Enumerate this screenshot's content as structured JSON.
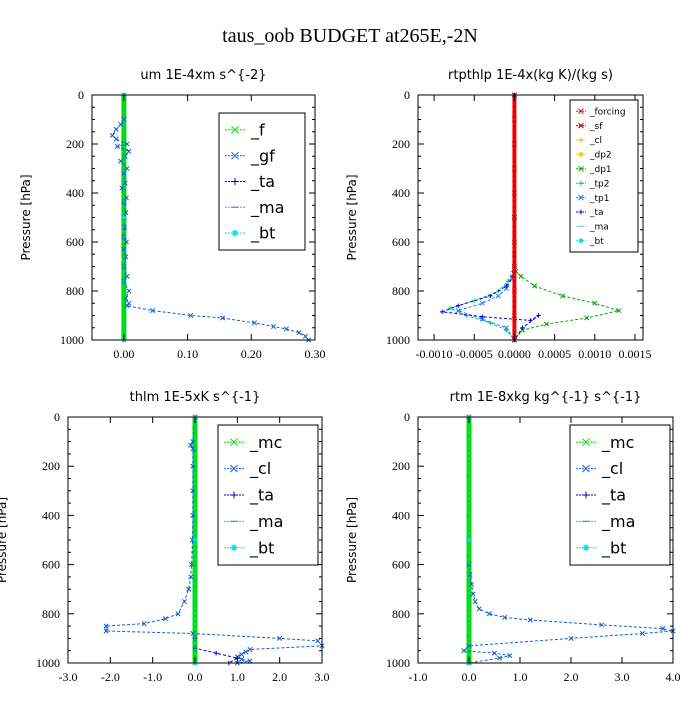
{
  "figure": {
    "title": "taus_oob  BUDGET at265E,-2N"
  },
  "colors": {
    "f": "#00dd00",
    "gf": "#1060d0",
    "ta": "#0000cc",
    "ma": "#40a0ff",
    "bt": "#00e0e0",
    "mc": "#00dd00",
    "cl": "#1060d0",
    "forcing": "#ff0000",
    "sf": "#c00000",
    "cl_rt": "#ffa000",
    "dp2": "#ffcc00",
    "dp1": "#00aa00",
    "tp2": "#00cc66",
    "tp1": "#2080ff",
    "ta_rt": "#0000ff",
    "ma_rt": "#80c0ff",
    "bt_rt": "#00e0e0"
  },
  "chart_data": [
    {
      "type": "line",
      "title": "um  1E-4xm s^{-2}",
      "ylabel": "Pressure [hPa]",
      "xlim": [
        -0.05,
        0.3
      ],
      "ylim": [
        1000,
        0
      ],
      "xticks": [
        "0.00",
        "0.10",
        "0.20",
        "0.30"
      ],
      "xtick_values": [
        0.0,
        0.1,
        0.2,
        0.3
      ],
      "yticks": [
        "0",
        "200",
        "400",
        "600",
        "800",
        "1000"
      ],
      "ytick_values": [
        0,
        200,
        400,
        600,
        800,
        1000
      ],
      "legend": {
        "position": "top-right",
        "font_size": 16,
        "entries": [
          {
            "label": "_f",
            "color": "#00dd00",
            "marker": "x"
          },
          {
            "label": "_gf",
            "color": "#1060d0",
            "marker": "x"
          },
          {
            "label": "_ta",
            "color": "#0000cc",
            "marker": "+"
          },
          {
            "label": "_ma",
            "color": "#40a0ff",
            "marker": "-"
          },
          {
            "label": "_bt",
            "color": "#00e0e0",
            "marker": "*"
          }
        ]
      },
      "series": [
        {
          "name": "_f",
          "color": "#00dd00",
          "width": 5,
          "x": [
            0,
            0,
            0,
            0,
            0,
            0,
            0,
            0,
            0,
            0,
            0
          ],
          "y": [
            0,
            100,
            200,
            300,
            400,
            500,
            600,
            700,
            800,
            900,
            1000
          ]
        },
        {
          "name": "_gf",
          "color": "#1060d0",
          "width": 1,
          "x": [
            0.0,
            0.0,
            -0.005,
            -0.012,
            -0.018,
            -0.012,
            0.005,
            -0.01,
            0.008,
            0.002,
            -0.005,
            0.005,
            0.0,
            0.002,
            -0.003,
            0.004,
            0.0,
            0.003,
            0.0,
            0.001,
            0.0,
            0.004,
            0.0,
            0.003,
            0.0,
            0.005,
            0.0,
            0.008,
            0.003,
            0.008,
            0.005,
            0.045,
            0.105,
            0.155,
            0.205,
            0.235,
            0.255,
            0.275,
            0.285,
            0.29
          ],
          "y": [
            0,
            100,
            120,
            140,
            165,
            180,
            200,
            210,
            230,
            250,
            270,
            300,
            320,
            360,
            380,
            420,
            440,
            480,
            500,
            540,
            580,
            600,
            630,
            660,
            700,
            740,
            760,
            800,
            830,
            850,
            860,
            880,
            900,
            910,
            930,
            945,
            955,
            970,
            985,
            1000
          ]
        },
        {
          "name": "_ta",
          "color": "#0000cc",
          "width": 1,
          "x": [
            0.0,
            0.0,
            0.0
          ],
          "y": [
            0,
            500,
            1000
          ]
        },
        {
          "name": "_bt",
          "color": "#00e0e0",
          "width": 1,
          "x": [
            0.0,
            0.0,
            0.0
          ],
          "y": [
            0,
            500,
            1000
          ]
        }
      ]
    },
    {
      "type": "line",
      "title": "rtpthlp  1E-4x(kg K)/(kg s)",
      "ylabel": "Pressure [hPa]",
      "xlim": [
        -0.0012,
        0.0016
      ],
      "ylim": [
        1000,
        0
      ],
      "xticks": [
        "-0.0010",
        "-0.0005",
        "0.0000",
        "0.0005",
        "0.0010",
        "0.0015"
      ],
      "xtick_values": [
        -0.001,
        -0.0005,
        0.0,
        0.0005,
        0.001,
        0.0015
      ],
      "yticks": [
        "0",
        "200",
        "400",
        "600",
        "800",
        "1000"
      ],
      "ytick_values": [
        0,
        200,
        400,
        600,
        800,
        1000
      ],
      "legend": {
        "position": "top-right",
        "font_size": 9,
        "entries": [
          {
            "label": "_forcing",
            "color": "#ff0000",
            "marker": "x"
          },
          {
            "label": "_sf",
            "color": "#c00000",
            "marker": "x"
          },
          {
            "label": "_cl",
            "color": "#ffa000",
            "marker": "+"
          },
          {
            "label": "_dp2",
            "color": "#ffcc00",
            "marker": "*"
          },
          {
            "label": "_dp1",
            "color": "#00aa00",
            "marker": "x"
          },
          {
            "label": "_tp2",
            "color": "#00cc66",
            "marker": "+"
          },
          {
            "label": "_tp1",
            "color": "#2080ff",
            "marker": "x"
          },
          {
            "label": "_ta",
            "color": "#0000ff",
            "marker": "+"
          },
          {
            "label": "_ma",
            "color": "#80c0ff",
            "marker": "-"
          },
          {
            "label": "_bt",
            "color": "#00e0e0",
            "marker": "*"
          }
        ]
      },
      "series": [
        {
          "name": "_dp1",
          "color": "#00aa00",
          "width": 1,
          "x": [
            0,
            0,
            0,
            0,
            2e-05,
            8e-05,
            0.00025,
            0.0006,
            0.001,
            0.0013,
            0.0009,
            0.0004,
            0.0001,
            0
          ],
          "y": [
            0,
            500,
            650,
            700,
            720,
            740,
            780,
            820,
            850,
            880,
            910,
            935,
            960,
            1000
          ]
        },
        {
          "name": "_tp2",
          "color": "#00cc66",
          "width": 1,
          "x": [
            0,
            0,
            0,
            -2e-05,
            -8e-05,
            -0.0002,
            -0.0005,
            -0.0008,
            -0.0006,
            -0.0003,
            -0.0001,
            0
          ],
          "y": [
            0,
            500,
            700,
            720,
            760,
            800,
            840,
            870,
            900,
            930,
            960,
            1000
          ]
        },
        {
          "name": "_tp1",
          "color": "#2080ff",
          "width": 1,
          "x": [
            0,
            0,
            -3e-05,
            -0.0001,
            -0.0002,
            -0.0004,
            -0.0007,
            -0.0004,
            -0.0001,
            0
          ],
          "y": [
            0,
            600,
            750,
            790,
            820,
            850,
            880,
            915,
            950,
            1000
          ]
        },
        {
          "name": "_ta",
          "color": "#0000ff",
          "width": 1,
          "x": [
            0,
            0,
            -2e-05,
            -0.0001,
            -0.0003,
            -0.0007,
            -0.0009,
            -0.0004,
            0.0002,
            0.0003,
            0.0001,
            0
          ],
          "y": [
            0,
            700,
            740,
            780,
            820,
            860,
            885,
            905,
            920,
            900,
            950,
            1000
          ]
        },
        {
          "name": "_forcing",
          "color": "#ff0000",
          "width": 4,
          "x": [
            0,
            0,
            0,
            0,
            0,
            0,
            0,
            0,
            0,
            0,
            0
          ],
          "y": [
            0,
            100,
            200,
            300,
            400,
            500,
            600,
            700,
            800,
            900,
            1000
          ]
        },
        {
          "name": "_sf",
          "color": "#c00000",
          "width": 1,
          "x": [
            0,
            0,
            0
          ],
          "y": [
            0,
            500,
            1000
          ]
        }
      ]
    },
    {
      "type": "line",
      "title": "thlm  1E-5xK s^{-1}",
      "ylabel": "Pressure [hPa]",
      "xlim": [
        -3.0,
        3.0
      ],
      "ylim": [
        1000,
        0
      ],
      "xticks": [
        "-3.0",
        "-2.0",
        "-1.0",
        "0.0",
        "1.0",
        "2.0",
        "3.0"
      ],
      "xtick_values": [
        -3,
        -2,
        -1,
        0,
        1,
        2,
        3
      ],
      "yticks": [
        "0",
        "200",
        "400",
        "600",
        "800",
        "1000"
      ],
      "ytick_values": [
        0,
        200,
        400,
        600,
        800,
        1000
      ],
      "legend": {
        "position": "top-right",
        "font_size": 16,
        "entries": [
          {
            "label": "_mc",
            "color": "#00dd00",
            "marker": "x"
          },
          {
            "label": "_cl",
            "color": "#1060d0",
            "marker": "x"
          },
          {
            "label": "_ta",
            "color": "#0000cc",
            "marker": "+"
          },
          {
            "label": "_ma",
            "color": "#40a0ff",
            "marker": "-"
          },
          {
            "label": "_bt",
            "color": "#00e0e0",
            "marker": "*"
          }
        ]
      },
      "series": [
        {
          "name": "_mc",
          "color": "#00dd00",
          "width": 5,
          "x": [
            0,
            0,
            0,
            0,
            0,
            0,
            0,
            0,
            0,
            0,
            0
          ],
          "y": [
            0,
            100,
            200,
            300,
            400,
            500,
            600,
            700,
            800,
            900,
            1000
          ]
        },
        {
          "name": "_cl",
          "color": "#1060d0",
          "width": 1,
          "x": [
            0,
            -0.05,
            -0.1,
            -0.05,
            -0.05,
            -0.05,
            -0.05,
            -0.06,
            -0.08,
            -0.1,
            -0.15,
            -0.25,
            -0.4,
            -0.7,
            -1.2,
            -2.1,
            -2.1,
            -0.05,
            2.0,
            2.9,
            3.0,
            1.3,
            1.2,
            1.1,
            1.0,
            1.1,
            1.3,
            1.0
          ],
          "y": [
            0,
            100,
            115,
            130,
            200,
            300,
            400,
            500,
            600,
            650,
            700,
            750,
            800,
            820,
            840,
            850,
            870,
            880,
            900,
            910,
            930,
            945,
            955,
            965,
            975,
            985,
            992,
            1000
          ]
        },
        {
          "name": "_ta",
          "color": "#0000cc",
          "width": 1,
          "x": [
            0,
            0,
            0,
            0.5,
            1.0,
            0.8
          ],
          "y": [
            0,
            900,
            940,
            960,
            980,
            1000
          ]
        },
        {
          "name": "_bt",
          "color": "#00e0e0",
          "width": 1,
          "x": [
            0,
            0,
            0
          ],
          "y": [
            0,
            500,
            1000
          ]
        }
      ]
    },
    {
      "type": "line",
      "title": "rtm  1E-8xkg kg^{-1} s^{-1}",
      "ylabel": "Pressure [hPa]",
      "xlim": [
        -1.0,
        4.0
      ],
      "ylim": [
        1000,
        0
      ],
      "xticks": [
        "-1.0",
        "0.0",
        "1.0",
        "2.0",
        "3.0",
        "4.0"
      ],
      "xtick_values": [
        -1,
        0,
        1,
        2,
        3,
        4
      ],
      "yticks": [
        "0",
        "200",
        "400",
        "600",
        "800",
        "1000"
      ],
      "ytick_values": [
        0,
        200,
        400,
        600,
        800,
        1000
      ],
      "legend": {
        "position": "top-right",
        "font_size": 16,
        "entries": [
          {
            "label": "_mc",
            "color": "#00dd00",
            "marker": "x"
          },
          {
            "label": "_cl",
            "color": "#1060d0",
            "marker": "x"
          },
          {
            "label": "_ta",
            "color": "#0000cc",
            "marker": "+"
          },
          {
            "label": "_ma",
            "color": "#40a0ff",
            "marker": "-"
          },
          {
            "label": "_bt",
            "color": "#00e0e0",
            "marker": "*"
          }
        ]
      },
      "series": [
        {
          "name": "_mc",
          "color": "#00dd00",
          "width": 5,
          "x": [
            0,
            0,
            0,
            0,
            0,
            0,
            0,
            0,
            0,
            0,
            0
          ],
          "y": [
            0,
            100,
            200,
            300,
            400,
            500,
            600,
            700,
            800,
            900,
            1000
          ]
        },
        {
          "name": "_cl",
          "color": "#1060d0",
          "width": 1,
          "x": [
            0,
            0,
            0,
            0.02,
            0.05,
            0.08,
            0.12,
            0.2,
            0.4,
            0.7,
            1.2,
            2.6,
            3.8,
            4.0,
            3.4,
            2.0,
            0.0,
            -0.1,
            0.5,
            0.8,
            0.6,
            0.0
          ],
          "y": [
            0,
            500,
            600,
            640,
            680,
            720,
            750,
            780,
            800,
            815,
            825,
            845,
            860,
            870,
            880,
            900,
            930,
            950,
            960,
            970,
            980,
            1000
          ]
        },
        {
          "name": "_ta",
          "color": "#0000cc",
          "width": 1,
          "x": [
            0,
            0,
            0
          ],
          "y": [
            0,
            500,
            1000
          ]
        },
        {
          "name": "_bt",
          "color": "#00e0e0",
          "width": 1,
          "x": [
            0,
            0,
            0
          ],
          "y": [
            0,
            500,
            1000
          ]
        }
      ]
    }
  ]
}
